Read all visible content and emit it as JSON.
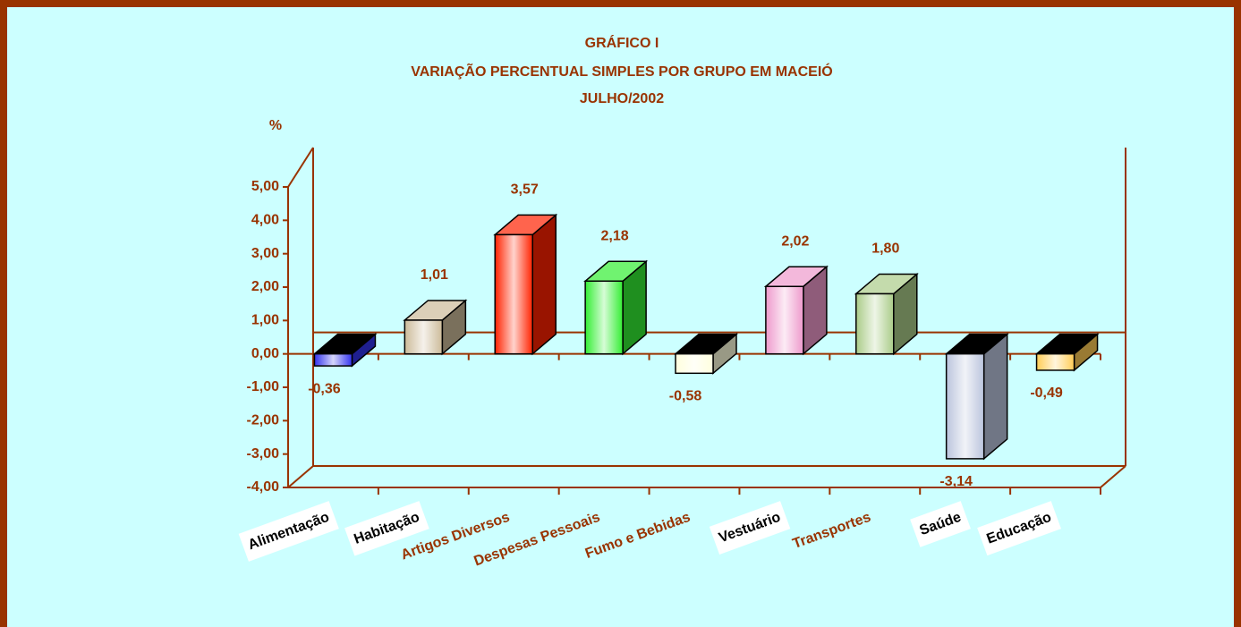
{
  "chart_data": {
    "type": "bar3d",
    "title": [
      "GRÁFICO I",
      "VARIAÇÃO PERCENTUAL SIMPLES POR GRUPO EM MACEIÓ",
      "JULHO/2002"
    ],
    "y_label": "%",
    "categories": [
      "Alimentação",
      "Habitação",
      "Artigos Diversos",
      "Despesas Pessoais",
      "Fumo e Bebidas",
      "Vestuário",
      "Transportes",
      "Saúde",
      "Educação"
    ],
    "values": [
      -0.36,
      1.01,
      3.57,
      2.18,
      -0.58,
      2.02,
      1.8,
      -3.14,
      -0.49
    ],
    "value_labels": [
      "-0,36",
      "1,01",
      "3,57",
      "2,18",
      "-0,58",
      "2,02",
      "1,80",
      "-3,14",
      "-0,49"
    ],
    "colors": [
      "#3333ee",
      "#ccbb99",
      "#ff2200",
      "#33ee33",
      "#ffffdd",
      "#ee99cc",
      "#aacc88",
      "#bbc4dd",
      "#ffcc55"
    ],
    "category_label_colors": [
      "#000000",
      "#000000",
      "#993300",
      "#993300",
      "#993300",
      "#000000",
      "#993300",
      "#000000",
      "#000000"
    ],
    "ylim": [
      -4,
      5
    ],
    "yticks": [
      {
        "value": 5,
        "label": "5,00"
      },
      {
        "value": 4,
        "label": "4,00"
      },
      {
        "value": 3,
        "label": "3,00"
      },
      {
        "value": 2,
        "label": "2,00"
      },
      {
        "value": 1,
        "label": "1,00"
      },
      {
        "value": 0,
        "label": "0,00"
      },
      {
        "value": -1,
        "label": "-1,00"
      },
      {
        "value": -2,
        "label": "-2,00"
      },
      {
        "value": -3,
        "label": "-3,00"
      },
      {
        "value": -4,
        "label": "-4,00"
      }
    ]
  }
}
